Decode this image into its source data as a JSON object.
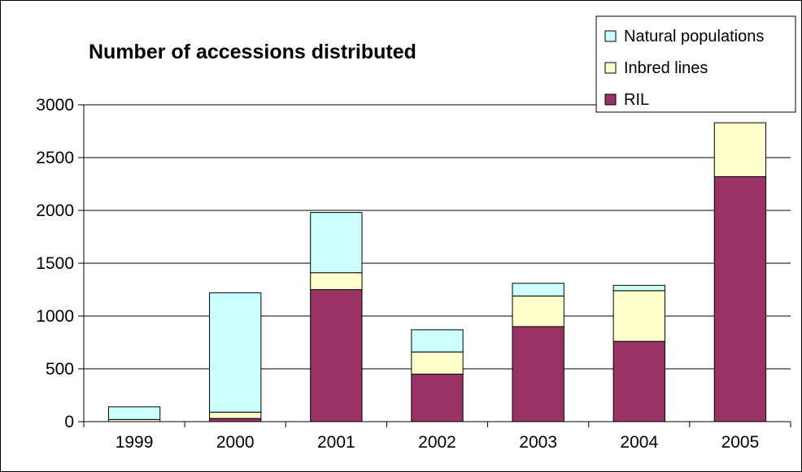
{
  "chart_data": {
    "type": "bar",
    "stacked": true,
    "title": "Number of accessions distributed",
    "xlabel": "",
    "ylabel": "",
    "categories": [
      "1999",
      "2000",
      "2001",
      "2002",
      "2003",
      "2004",
      "2005"
    ],
    "ylim": [
      0,
      3000
    ],
    "yticks": [
      "0",
      "500",
      "1000",
      "1500",
      "2000",
      "2500",
      "3000"
    ],
    "grid": true,
    "legend_position": "top-right",
    "series": [
      {
        "name": "RIL",
        "color": "#993366",
        "values": [
          0,
          30,
          1250,
          450,
          900,
          760,
          2320
        ]
      },
      {
        "name": "Inbred lines",
        "color": "#FFFFCC",
        "values": [
          20,
          60,
          160,
          210,
          290,
          480,
          510
        ]
      },
      {
        "name": "Natural populations",
        "color": "#CCFFFF",
        "values": [
          120,
          1130,
          570,
          210,
          120,
          50,
          0
        ]
      }
    ],
    "legend_order": [
      "Natural populations",
      "Inbred lines",
      "RIL"
    ]
  }
}
